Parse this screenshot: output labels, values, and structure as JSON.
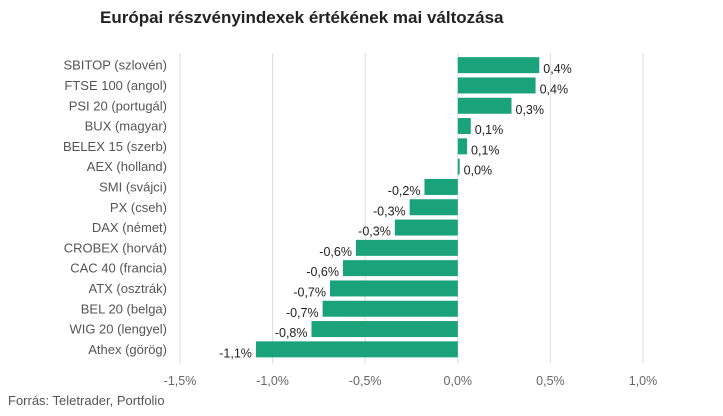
{
  "chart_data": {
    "type": "bar",
    "orientation": "horizontal",
    "title": "Európai részvényindexek értékének mai változása",
    "xlabel": "",
    "ylabel": "",
    "xlim": [
      -1.5,
      1.0
    ],
    "x_ticks": [
      -1.5,
      -1.0,
      -0.5,
      0.0,
      0.5,
      1.0
    ],
    "x_tick_labels": [
      "-1,5%",
      "-1,0%",
      "-0,5%",
      "0,0%",
      "0,5%",
      "1,0%"
    ],
    "grid": "vertical",
    "bar_color": "#1aa37a",
    "categories": [
      "SBITOP (szlovén)",
      "FTSE 100 (angol)",
      "PSI 20 (portugál)",
      "BUX (magyar)",
      "BELEX 15 (szerb)",
      "AEX (holland)",
      "SMI (svájci)",
      "PX (cseh)",
      "DAX (német)",
      "CROBEX (horvát)",
      "CAC 40 (francia)",
      "ATX (osztrák)",
      "BEL 20 (belga)",
      "WIG 20 (lengyel)",
      "Athex (görög)"
    ],
    "values": [
      0.44,
      0.42,
      0.29,
      0.07,
      0.05,
      0.01,
      -0.18,
      -0.26,
      -0.34,
      -0.55,
      -0.62,
      -0.69,
      -0.73,
      -0.79,
      -1.09
    ],
    "value_labels": [
      "0,4%",
      "0,4%",
      "0,3%",
      "0,1%",
      "0,1%",
      "0,0%",
      "-0,2%",
      "-0,3%",
      "-0,3%",
      "-0,6%",
      "-0,6%",
      "-0,7%",
      "-0,7%",
      "-0,8%",
      "-1,1%"
    ]
  },
  "source": "Forrás: Teletrader, Portfolio"
}
